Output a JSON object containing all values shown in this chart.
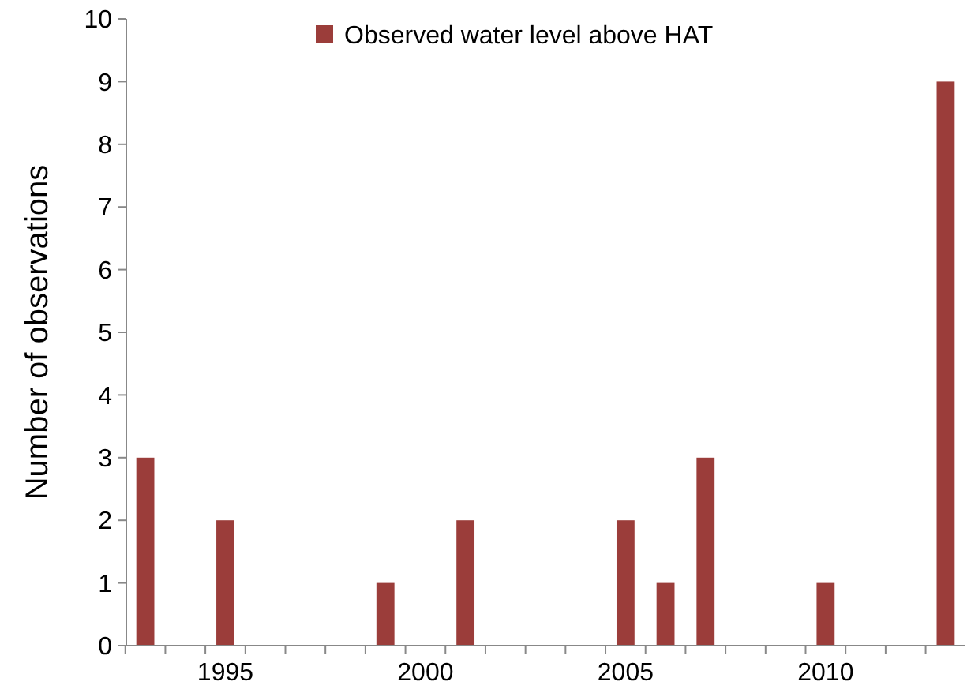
{
  "chart_data": {
    "type": "bar",
    "ylabel": "Number of observations",
    "categories": [
      null,
      null,
      "1995",
      null,
      null,
      null,
      null,
      "2000",
      null,
      null,
      null,
      null,
      "2005",
      null,
      null,
      null,
      null,
      "2010",
      null,
      null,
      null
    ],
    "series": [
      {
        "name": "Observed water level above HAT",
        "color": "#9b3d3a",
        "values": [
          3,
          0,
          2,
          0,
          0,
          0,
          1,
          0,
          2,
          0,
          0,
          0,
          2,
          1,
          3,
          0,
          0,
          1,
          0,
          0,
          9
        ]
      }
    ],
    "ylim": [
      0,
      10
    ],
    "yticks": [
      0,
      1,
      2,
      3,
      4,
      5,
      6,
      7,
      8,
      9,
      10
    ],
    "legend": "top"
  }
}
